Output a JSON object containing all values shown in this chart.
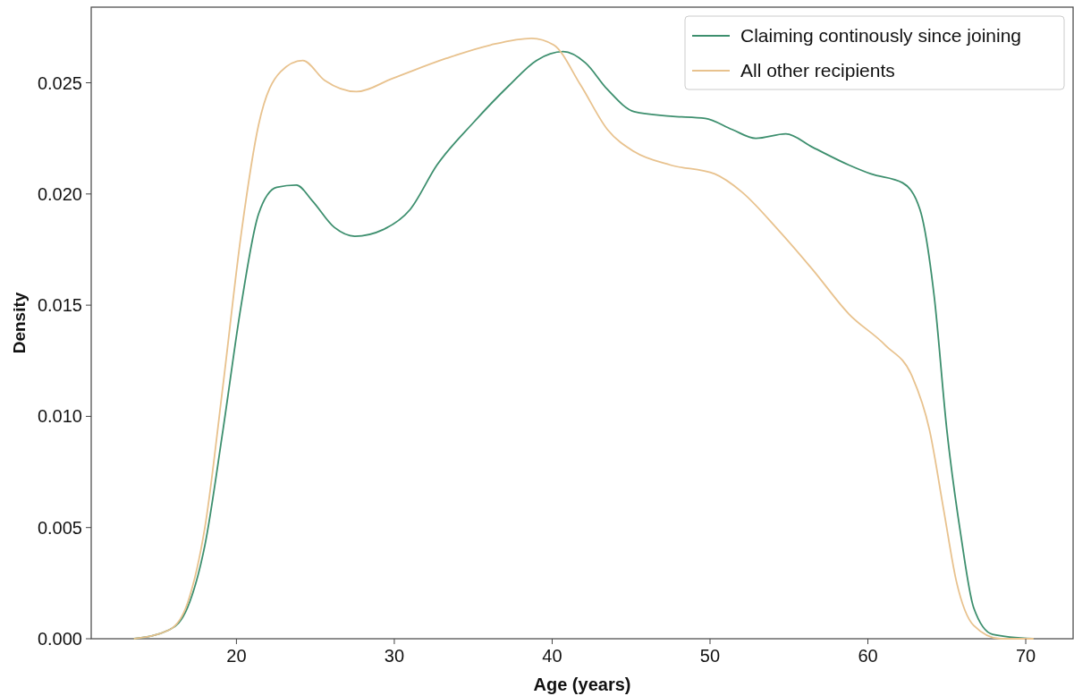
{
  "chart_data": {
    "type": "line",
    "xlabel": "Age (years)",
    "ylabel": "Density",
    "xlim": [
      10.8,
      73
    ],
    "ylim": [
      0,
      0.0284
    ],
    "xticks": [
      20,
      30,
      40,
      50,
      60,
      70
    ],
    "yticks": [
      {
        "value": 0,
        "label": "0.000"
      },
      {
        "value": 0.005,
        "label": "0.005"
      },
      {
        "value": 0.01,
        "label": "0.010"
      },
      {
        "value": 0.015,
        "label": "0.015"
      },
      {
        "value": 0.02,
        "label": "0.020"
      },
      {
        "value": 0.025,
        "label": "0.025"
      }
    ],
    "grid": false,
    "legend": "top right",
    "marker": "none",
    "line_style": "solid",
    "series": [
      {
        "name": "Claiming continously since joining",
        "color": "#3d8f6e",
        "x": [
          13.5,
          15.75,
          16.9,
          18.0,
          19.15,
          20.3,
          21.4,
          22.55,
          23.8,
          24.8,
          26.2,
          27.5,
          29.3,
          31.0,
          32.7,
          35.0,
          37.3,
          39.0,
          40.7,
          42.1,
          43.5,
          45.2,
          47.5,
          49.7,
          51.4,
          52.9,
          54.8,
          56.5,
          58.8,
          60.2,
          62.2,
          63.3,
          64.2,
          65.0,
          65.9,
          66.7,
          67.9,
          70.5
        ],
        "values": [
          0,
          0.0004,
          0.0014,
          0.0042,
          0.0094,
          0.015,
          0.0191,
          0.0203,
          0.0204,
          0.0197,
          0.0185,
          0.0181,
          0.0184,
          0.0193,
          0.0213,
          0.0232,
          0.0249,
          0.026,
          0.0264,
          0.0259,
          0.0247,
          0.0237,
          0.0235,
          0.0234,
          0.0229,
          0.0225,
          0.0227,
          0.0221,
          0.0213,
          0.0209,
          0.0205,
          0.0193,
          0.0154,
          0.0094,
          0.0046,
          0.0014,
          0.0002,
          0
        ]
      },
      {
        "name": "All other recipients",
        "color": "#e8c28e",
        "x": [
          13.5,
          15.75,
          16.9,
          18.0,
          19.15,
          20.3,
          21.4,
          22.8,
          24.2,
          25.6,
          27.6,
          29.9,
          33.3,
          36.1,
          38.7,
          40.1,
          41.8,
          43.5,
          45.2,
          47.5,
          50.3,
          52.0,
          54.3,
          56.5,
          58.8,
          61.1,
          62.8,
          63.9,
          64.8,
          65.6,
          66.7,
          68.4,
          70.5
        ],
        "values": [
          0,
          0.0004,
          0.0016,
          0.005,
          0.0114,
          0.0182,
          0.0231,
          0.0255,
          0.026,
          0.0251,
          0.0246,
          0.0252,
          0.0261,
          0.0267,
          0.027,
          0.0267,
          0.0249,
          0.0229,
          0.0219,
          0.0213,
          0.0209,
          0.0201,
          0.0184,
          0.0166,
          0.0146,
          0.0132,
          0.0118,
          0.0094,
          0.0058,
          0.0026,
          0.0006,
          0,
          0
        ]
      }
    ]
  }
}
